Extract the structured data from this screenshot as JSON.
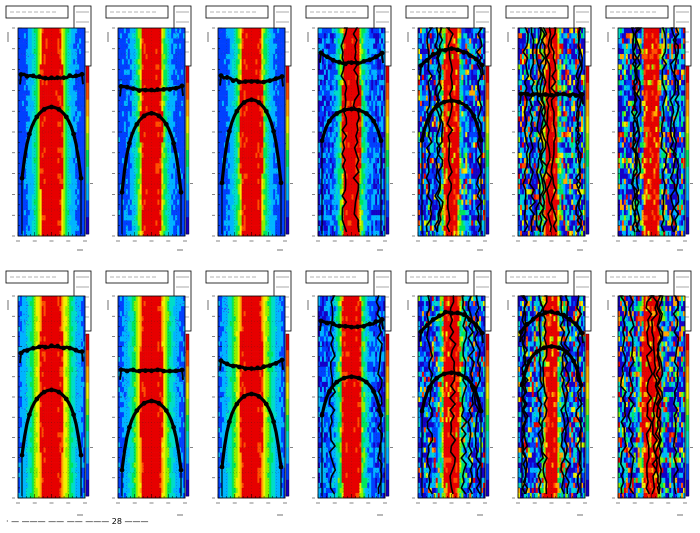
{
  "page": {
    "footer_text": "· — ——— —— —— ——— 28 ———"
  },
  "palette": {
    "stops": [
      "#1400c8",
      "#0040ff",
      "#00b4ff",
      "#00dcc8",
      "#00e65a",
      "#8cf000",
      "#f0f000",
      "#ffaa00",
      "#ff5000",
      "#e60000"
    ],
    "ink": "#000000",
    "scatter": "#3333ff"
  },
  "chart_data": {
    "type": "heatmap",
    "grid": {
      "rows": 2,
      "cols": 7
    },
    "description_of_axes": {
      "xlim": [
        -1,
        1
      ],
      "ylim": [
        0,
        1
      ],
      "z_colorscale": "rainbow (violet low → red high)"
    },
    "panels": [
      {
        "id": "r1c1",
        "row": 0,
        "col": 0,
        "core_halfwidth": 0.28,
        "spread": 0.55,
        "noise": 0.1,
        "upper_band": {
          "y": 0.78,
          "sag": 0.02
        },
        "lower_band": {
          "y": 0.53,
          "arch": 0.18
        },
        "tracks": 0
      },
      {
        "id": "r1c2",
        "row": 0,
        "col": 1,
        "core_halfwidth": 0.26,
        "spread": 0.5,
        "noise": 0.15,
        "upper_band": {
          "y": 0.72,
          "sag": 0.02
        },
        "lower_band": {
          "y": 0.49,
          "arch": 0.2
        },
        "tracks": 0
      },
      {
        "id": "r1c3",
        "row": 0,
        "col": 2,
        "core_halfwidth": 0.27,
        "spread": 0.52,
        "noise": 0.12,
        "upper_band": {
          "y": 0.77,
          "sag": 0.03
        },
        "lower_band": {
          "y": 0.55,
          "arch": 0.21
        },
        "tracks": 0
      },
      {
        "id": "r1c4",
        "row": 0,
        "col": 3,
        "core_halfwidth": 0.22,
        "spread": 0.4,
        "noise": 0.35,
        "upper_band": {
          "y": 0.88,
          "sag": 0.05
        },
        "lower_band": {
          "y": 0.57,
          "arch": 0.08
        },
        "tracks": 2
      },
      {
        "id": "r1c5",
        "row": 0,
        "col": 4,
        "core_halfwidth": 0.18,
        "spread": 0.32,
        "noise": 0.55,
        "upper_band": {
          "y": 0.82,
          "sag": -0.08
        },
        "lower_band": {
          "y": 0.6,
          "arch": 0.1
        },
        "tracks": 5
      },
      {
        "id": "r1c6",
        "row": 0,
        "col": 5,
        "core_halfwidth": 0.15,
        "spread": 0.28,
        "noise": 0.75,
        "upper_band": {
          "y": 0.68,
          "sag": 0.0
        },
        "lower_band": null,
        "tracks": 9
      },
      {
        "id": "r1c7",
        "row": 0,
        "col": 6,
        "core_halfwidth": 0.2,
        "spread": 0.28,
        "noise": 0.8,
        "upper_band": null,
        "lower_band": null,
        "tracks": 6
      },
      {
        "id": "r2c1",
        "row": 1,
        "col": 0,
        "core_halfwidth": 0.28,
        "spread": 0.7,
        "noise": 0.05,
        "upper_band": {
          "y": 0.72,
          "sag": -0.03
        },
        "lower_band": {
          "y": 0.45,
          "arch": 0.17
        },
        "tracks": 0
      },
      {
        "id": "r2c2",
        "row": 1,
        "col": 1,
        "core_halfwidth": 0.27,
        "spread": 0.65,
        "noise": 0.1,
        "upper_band": {
          "y": 0.63,
          "sag": 0.0
        },
        "lower_band": {
          "y": 0.39,
          "arch": 0.18
        },
        "tracks": 0
      },
      {
        "id": "r2c3",
        "row": 1,
        "col": 2,
        "core_halfwidth": 0.28,
        "spread": 0.68,
        "noise": 0.08,
        "upper_band": {
          "y": 0.68,
          "sag": 0.04
        },
        "lower_band": {
          "y": 0.42,
          "arch": 0.19
        },
        "tracks": 0
      },
      {
        "id": "r2c4",
        "row": 1,
        "col": 3,
        "core_halfwidth": 0.25,
        "spread": 0.45,
        "noise": 0.3,
        "upper_band": {
          "y": 0.88,
          "sag": 0.03
        },
        "lower_band": {
          "y": 0.55,
          "arch": 0.1
        },
        "tracks": 2
      },
      {
        "id": "r2c5",
        "row": 1,
        "col": 4,
        "core_halfwidth": 0.2,
        "spread": 0.36,
        "noise": 0.5,
        "upper_band": {
          "y": 0.82,
          "sag": -0.1
        },
        "lower_band": {
          "y": 0.57,
          "arch": 0.1
        },
        "tracks": 5
      },
      {
        "id": "r2c6",
        "row": 1,
        "col": 5,
        "core_halfwidth": 0.16,
        "spread": 0.3,
        "noise": 0.7,
        "upper_band": {
          "y": 0.82,
          "sag": -0.1
        },
        "lower_band": {
          "y": 0.7,
          "arch": 0.1
        },
        "tracks": 7
      },
      {
        "id": "r2c7",
        "row": 1,
        "col": 6,
        "core_halfwidth": 0.22,
        "spread": 0.32,
        "noise": 0.85,
        "upper_band": null,
        "lower_band": null,
        "tracks": 7
      }
    ]
  }
}
